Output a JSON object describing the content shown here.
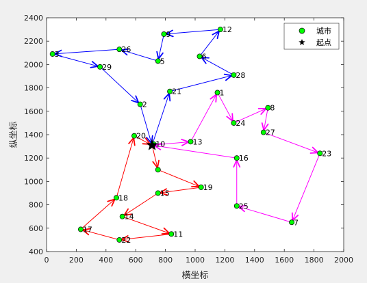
{
  "chart_data": {
    "type": "scatter",
    "title": "",
    "xlabel": "横坐标",
    "ylabel": "纵坐标",
    "xlim": [
      0,
      2000
    ],
    "ylim": [
      400,
      2400
    ],
    "xticks": [
      "0",
      "200",
      "400",
      "600",
      "800",
      "1000",
      "1200",
      "1400",
      "1600",
      "1800",
      "2000"
    ],
    "yticks": [
      "400",
      "600",
      "800",
      "1000",
      "1200",
      "1400",
      "1600",
      "1800",
      "2000",
      "2200",
      "2400"
    ],
    "grid": false,
    "legend_position": "top-right",
    "legend": [
      {
        "label": "城市",
        "marker": "circle",
        "color": "#00ff00"
      },
      {
        "label": "起点",
        "marker": "star",
        "color": "#000000"
      }
    ],
    "start_city": {
      "x": 710,
      "y": 1310
    },
    "cities": [
      {
        "id": "1",
        "x": 1150,
        "y": 1760
      },
      {
        "id": "2",
        "x": 630,
        "y": 1660
      },
      {
        "id": "3",
        "x": 40,
        "y": 2090
      },
      {
        "id": "5",
        "x": 750,
        "y": 2030
      },
      {
        "id": "6",
        "x": 1030,
        "y": 2070
      },
      {
        "id": "7",
        "x": 1650,
        "y": 650
      },
      {
        "id": "8",
        "x": 1490,
        "y": 1630
      },
      {
        "id": "9",
        "x": 790,
        "y": 2260
      },
      {
        "id": "10",
        "x": 720,
        "y": 1320
      },
      {
        "id": "11",
        "x": 840,
        "y": 550
      },
      {
        "id": "12",
        "x": 1170,
        "y": 2300
      },
      {
        "id": "13",
        "x": 970,
        "y": 1340
      },
      {
        "id": "14",
        "x": 510,
        "y": 700
      },
      {
        "id": "15",
        "x": 750,
        "y": 900
      },
      {
        "id": "16",
        "x": 1280,
        "y": 1200
      },
      {
        "id": "17",
        "x": 230,
        "y": 590
      },
      {
        "id": "18",
        "x": 470,
        "y": 860
      },
      {
        "id": "19",
        "x": 1040,
        "y": 950
      },
      {
        "id": "20",
        "x": 590,
        "y": 1390
      },
      {
        "id": "21",
        "x": 830,
        "y": 1770
      },
      {
        "id": "22",
        "x": 490,
        "y": 500
      },
      {
        "id": "23",
        "x": 1840,
        "y": 1240
      },
      {
        "id": "24",
        "x": 1260,
        "y": 1500
      },
      {
        "id": "25",
        "x": 1280,
        "y": 790
      },
      {
        "id": "26",
        "x": 490,
        "y": 2130
      },
      {
        "id": "27",
        "x": 1460,
        "y": 1420
      },
      {
        "id": "28",
        "x": 1260,
        "y": 1910
      },
      {
        "id": "29",
        "x": 360,
        "y": 1980
      },
      {
        "id": "",
        "x": 750,
        "y": 1100
      }
    ],
    "series": [
      {
        "color": "#0000ff",
        "path": [
          [
            710,
            1310
          ],
          [
            830,
            1770
          ],
          [
            1260,
            1910
          ],
          [
            1030,
            2070
          ],
          [
            1170,
            2300
          ],
          [
            790,
            2260
          ],
          [
            750,
            2030
          ],
          [
            490,
            2130
          ],
          [
            40,
            2090
          ],
          [
            360,
            1980
          ],
          [
            630,
            1660
          ],
          [
            710,
            1310
          ]
        ]
      },
      {
        "color": "#ff00ff",
        "path": [
          [
            710,
            1310
          ],
          [
            970,
            1340
          ],
          [
            1150,
            1760
          ],
          [
            1260,
            1500
          ],
          [
            1490,
            1630
          ],
          [
            1460,
            1420
          ],
          [
            1840,
            1240
          ],
          [
            1650,
            650
          ],
          [
            1280,
            790
          ],
          [
            1280,
            1200
          ],
          [
            710,
            1310
          ]
        ]
      },
      {
        "color": "#ff0000",
        "path": [
          [
            710,
            1310
          ],
          [
            750,
            1100
          ],
          [
            1040,
            950
          ],
          [
            750,
            900
          ],
          [
            510,
            700
          ],
          [
            840,
            550
          ],
          [
            490,
            500
          ],
          [
            230,
            590
          ],
          [
            470,
            860
          ],
          [
            590,
            1390
          ],
          [
            710,
            1310
          ]
        ]
      }
    ]
  }
}
